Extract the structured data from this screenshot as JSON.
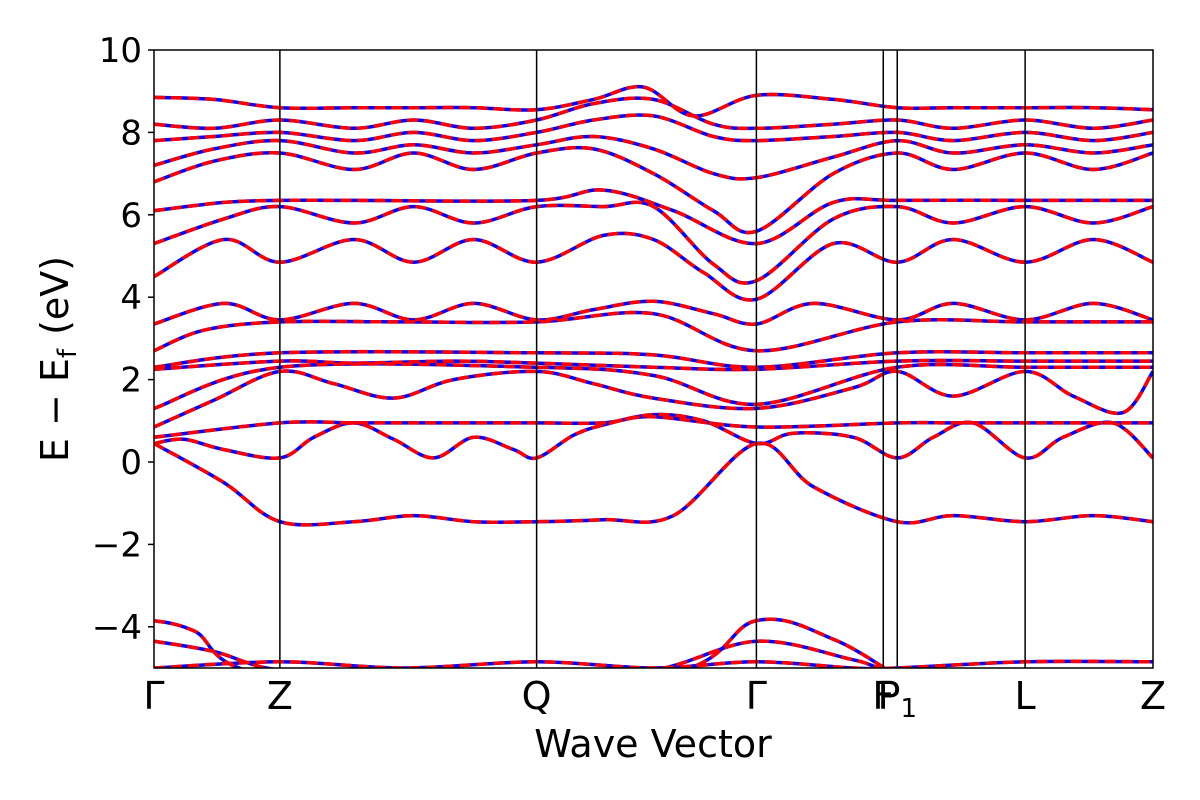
{
  "chart_data": {
    "type": "line",
    "title": "",
    "xlabel": "Wave Vector",
    "ylabel": {
      "main": "E − E",
      "sub": "f",
      "unit": "(eV)"
    },
    "ylim": [
      -5,
      10
    ],
    "yticks": [
      {
        "value": -4,
        "label": "−4"
      },
      {
        "value": -2,
        "label": "−2"
      },
      {
        "value": 0,
        "label": "0"
      },
      {
        "value": 2,
        "label": "2"
      },
      {
        "value": 4,
        "label": "4"
      },
      {
        "value": 6,
        "label": "6"
      },
      {
        "value": 8,
        "label": "8"
      },
      {
        "value": 10,
        "label": "10"
      }
    ],
    "kpoints": [
      {
        "pos": 0.0,
        "label": "Γ"
      },
      {
        "pos": 0.126,
        "label": "Z"
      },
      {
        "pos": 0.383,
        "label": "Q"
      },
      {
        "pos": 0.603,
        "label": "Γ"
      },
      {
        "pos": 0.73,
        "label": "F"
      },
      {
        "pos": 0.744,
        "label": "P",
        "sub": "1"
      },
      {
        "pos": 0.872,
        "label": "L"
      },
      {
        "pos": 1.0,
        "label": "Z"
      }
    ],
    "grid": false,
    "series": [
      {
        "style": "solid",
        "color": "#0000ff"
      },
      {
        "style": "dashed",
        "color": "#ff0000"
      }
    ],
    "bands": [
      {
        "k": [
          0,
          0.126,
          0.25,
          0.383,
          0.5,
          0.603,
          0.7,
          0.744,
          0.872,
          1.0
        ],
        "e": [
          -5.0,
          -4.85,
          -5.0,
          -4.85,
          -5.0,
          -4.85,
          -5.0,
          -5.0,
          -4.85,
          -4.85
        ]
      },
      {
        "k": [
          0,
          0.06,
          0.126,
          0.25,
          0.38,
          0.5,
          0.603,
          0.7,
          0.744,
          0.872,
          1.0
        ],
        "e": [
          -4.35,
          -4.6,
          -5.05,
          -5.1,
          -5.1,
          -5.05,
          -4.35,
          -4.8,
          -5.05,
          -5.05,
          -5.05
        ]
      },
      {
        "k": [
          0,
          0.04,
          0.126,
          0.5,
          0.603,
          0.68,
          0.744
        ],
        "e": [
          -3.85,
          -4.1,
          -5.2,
          -5.2,
          -3.85,
          -4.3,
          -5.2
        ]
      },
      {
        "k": [
          0,
          0.07,
          0.126,
          0.2,
          0.26,
          0.32,
          0.383,
          0.45,
          0.52,
          0.603,
          0.66,
          0.744,
          0.8,
          0.872,
          0.94,
          1.0
        ],
        "e": [
          0.45,
          -0.5,
          -1.45,
          -1.45,
          -1.3,
          -1.45,
          -1.45,
          -1.4,
          -1.3,
          0.45,
          -0.6,
          -1.45,
          -1.3,
          -1.45,
          -1.3,
          -1.45
        ]
      },
      {
        "k": [
          0,
          0.03,
          0.07,
          0.126,
          0.16,
          0.2,
          0.24,
          0.28,
          0.32,
          0.36,
          0.383,
          0.42,
          0.45,
          0.5,
          0.55,
          0.603,
          0.64,
          0.7,
          0.744,
          0.78,
          0.82,
          0.872,
          0.91,
          0.96,
          1.0
        ],
        "e": [
          0.45,
          0.55,
          0.3,
          0.1,
          0.6,
          0.95,
          0.55,
          0.1,
          0.6,
          0.3,
          0.1,
          0.65,
          0.9,
          1.15,
          1.0,
          0.45,
          0.7,
          0.6,
          0.1,
          0.6,
          0.95,
          0.1,
          0.6,
          0.95,
          0.1
        ]
      },
      {
        "k": [
          0,
          0.126,
          0.2,
          0.25,
          0.3,
          0.383,
          0.45,
          0.5,
          0.603,
          0.744,
          0.8,
          0.872,
          0.95,
          1.0
        ],
        "e": [
          0.6,
          0.95,
          0.95,
          0.95,
          0.95,
          0.95,
          0.95,
          1.1,
          0.85,
          0.95,
          0.95,
          0.95,
          0.95,
          0.95
        ]
      },
      {
        "k": [
          0,
          0.06,
          0.126,
          0.18,
          0.24,
          0.3,
          0.383,
          0.44,
          0.5,
          0.603,
          0.7,
          0.744,
          0.8,
          0.872,
          0.92,
          0.97,
          1.0
        ],
        "e": [
          0.85,
          1.5,
          2.2,
          1.9,
          1.55,
          2.0,
          2.2,
          1.9,
          1.55,
          1.3,
          1.8,
          2.2,
          1.6,
          2.2,
          1.6,
          1.2,
          2.2
        ]
      },
      {
        "k": [
          0,
          0.126,
          0.383,
          0.5,
          0.603,
          0.744,
          0.872,
          1.0
        ],
        "e": [
          1.3,
          2.3,
          2.3,
          2.1,
          1.4,
          2.3,
          2.3,
          2.3
        ]
      },
      {
        "k": [
          0,
          0.126,
          0.2,
          0.3,
          0.383,
          0.5,
          0.603,
          0.744,
          0.872,
          1.0
        ],
        "e": [
          2.25,
          2.45,
          2.4,
          2.45,
          2.4,
          2.3,
          2.25,
          2.45,
          2.45,
          2.45
        ]
      },
      {
        "k": [
          0,
          0.126,
          0.383,
          0.5,
          0.603,
          0.744,
          0.872,
          1.0
        ],
        "e": [
          2.3,
          2.65,
          2.65,
          2.6,
          2.3,
          2.65,
          2.65,
          2.65
        ]
      },
      {
        "k": [
          0,
          0.05,
          0.126,
          0.25,
          0.383,
          0.5,
          0.603,
          0.744,
          0.872,
          1.0
        ],
        "e": [
          2.7,
          3.2,
          3.4,
          3.4,
          3.4,
          3.6,
          2.7,
          3.4,
          3.4,
          3.4
        ]
      },
      {
        "k": [
          0,
          0.07,
          0.126,
          0.2,
          0.26,
          0.32,
          0.383,
          0.44,
          0.5,
          0.56,
          0.603,
          0.66,
          0.744,
          0.8,
          0.872,
          0.94,
          1.0
        ],
        "e": [
          3.35,
          3.85,
          3.45,
          3.85,
          3.45,
          3.85,
          3.45,
          3.7,
          3.9,
          3.6,
          3.35,
          3.85,
          3.45,
          3.85,
          3.45,
          3.85,
          3.45
        ]
      },
      {
        "k": [
          0,
          0.07,
          0.126,
          0.2,
          0.26,
          0.32,
          0.383,
          0.45,
          0.5,
          0.55,
          0.603,
          0.68,
          0.744,
          0.8,
          0.872,
          0.94,
          1.0
        ],
        "e": [
          4.5,
          5.4,
          4.85,
          5.4,
          4.85,
          5.4,
          4.85,
          5.5,
          5.4,
          4.6,
          3.95,
          5.3,
          4.85,
          5.4,
          4.85,
          5.4,
          4.85
        ]
      },
      {
        "k": [
          0,
          0.07,
          0.126,
          0.2,
          0.26,
          0.32,
          0.383,
          0.45,
          0.5,
          0.56,
          0.603,
          0.68,
          0.744,
          0.8,
          0.872,
          0.94,
          1.0
        ],
        "e": [
          5.3,
          5.9,
          6.2,
          5.8,
          6.2,
          5.8,
          6.2,
          6.2,
          6.2,
          4.8,
          4.4,
          5.9,
          6.2,
          5.8,
          6.2,
          5.8,
          6.2
        ]
      },
      {
        "k": [
          0,
          0.07,
          0.126,
          0.2,
          0.383,
          0.45,
          0.52,
          0.603,
          0.68,
          0.744,
          0.872,
          1.0
        ],
        "e": [
          6.1,
          6.3,
          6.35,
          6.35,
          6.35,
          6.6,
          6.1,
          5.3,
          6.3,
          6.35,
          6.35,
          6.35
        ]
      },
      {
        "k": [
          0,
          0.06,
          0.126,
          0.2,
          0.26,
          0.32,
          0.383,
          0.44,
          0.5,
          0.56,
          0.603,
          0.68,
          0.744,
          0.8,
          0.872,
          0.94,
          1.0
        ],
        "e": [
          6.8,
          7.3,
          7.5,
          7.1,
          7.5,
          7.1,
          7.5,
          7.6,
          7.0,
          6.1,
          5.6,
          7.0,
          7.5,
          7.1,
          7.5,
          7.1,
          7.5
        ]
      },
      {
        "k": [
          0,
          0.06,
          0.126,
          0.2,
          0.26,
          0.32,
          0.383,
          0.44,
          0.5,
          0.56,
          0.603,
          0.68,
          0.744,
          0.8,
          0.872,
          0.94,
          1.0
        ],
        "e": [
          7.2,
          7.6,
          7.8,
          7.5,
          7.7,
          7.5,
          7.7,
          7.9,
          7.6,
          7.0,
          6.9,
          7.4,
          7.8,
          7.5,
          7.7,
          7.5,
          7.7
        ]
      },
      {
        "k": [
          0,
          0.06,
          0.126,
          0.2,
          0.26,
          0.32,
          0.383,
          0.44,
          0.5,
          0.56,
          0.603,
          0.68,
          0.744,
          0.8,
          0.872,
          0.94,
          1.0
        ],
        "e": [
          7.8,
          7.9,
          8.0,
          7.8,
          8.0,
          7.8,
          8.0,
          8.3,
          8.4,
          7.9,
          7.8,
          7.9,
          8.0,
          7.8,
          8.0,
          7.8,
          8.0
        ]
      },
      {
        "k": [
          0,
          0.06,
          0.126,
          0.2,
          0.26,
          0.32,
          0.383,
          0.44,
          0.5,
          0.56,
          0.603,
          0.68,
          0.744,
          0.8,
          0.872,
          0.94,
          1.0
        ],
        "e": [
          8.2,
          8.1,
          8.3,
          8.1,
          8.3,
          8.1,
          8.3,
          8.7,
          8.8,
          8.2,
          8.1,
          8.2,
          8.3,
          8.1,
          8.3,
          8.1,
          8.3
        ]
      },
      {
        "k": [
          0,
          0.06,
          0.126,
          0.2,
          0.26,
          0.32,
          0.383,
          0.44,
          0.49,
          0.54,
          0.603,
          0.68,
          0.744,
          0.8,
          0.872,
          0.94,
          1.0
        ],
        "e": [
          8.85,
          8.8,
          8.6,
          8.6,
          8.6,
          8.6,
          8.55,
          8.8,
          9.1,
          8.4,
          8.9,
          8.8,
          8.6,
          8.6,
          8.6,
          8.6,
          8.55
        ]
      }
    ]
  }
}
